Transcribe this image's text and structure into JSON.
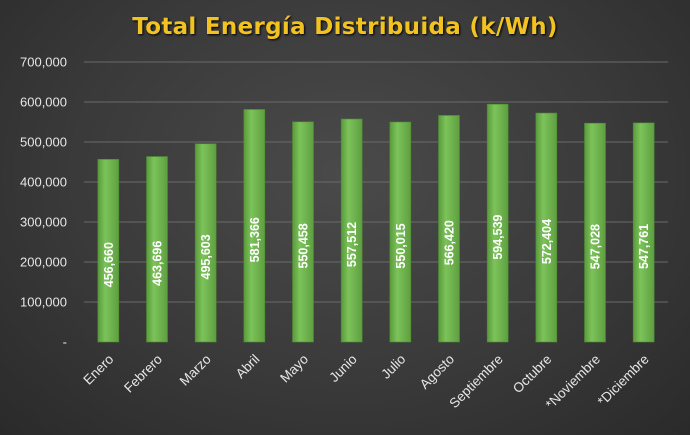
{
  "chart_data": {
    "type": "bar",
    "title": "Total Energía Distribuida (k/Wh)",
    "categories": [
      "Enero",
      "Febrero",
      "Marzo",
      "Abril",
      "Mayo",
      "Junio",
      "Julio",
      "Agosto",
      "Septiembre",
      "Octubre",
      "*Noviembre",
      "*Diciembre"
    ],
    "values": [
      456660,
      463696,
      495603,
      581366,
      550458,
      557512,
      550015,
      566420,
      594539,
      572404,
      547028,
      547761
    ],
    "data_labels": [
      "456,660",
      "463,696",
      "495,603",
      "581,366",
      "550,458",
      "557,512",
      "550,015",
      "566,420",
      "594,539",
      "572,404",
      "547,028",
      "547,761"
    ],
    "y_ticks": [
      "-",
      "100,000",
      "200,000",
      "300,000",
      "400,000",
      "500,000",
      "600,000",
      "700,000"
    ],
    "ylim": [
      0,
      700000
    ],
    "grid": true,
    "bar_color": "#6ab04c",
    "title_color": "#f2c320"
  }
}
